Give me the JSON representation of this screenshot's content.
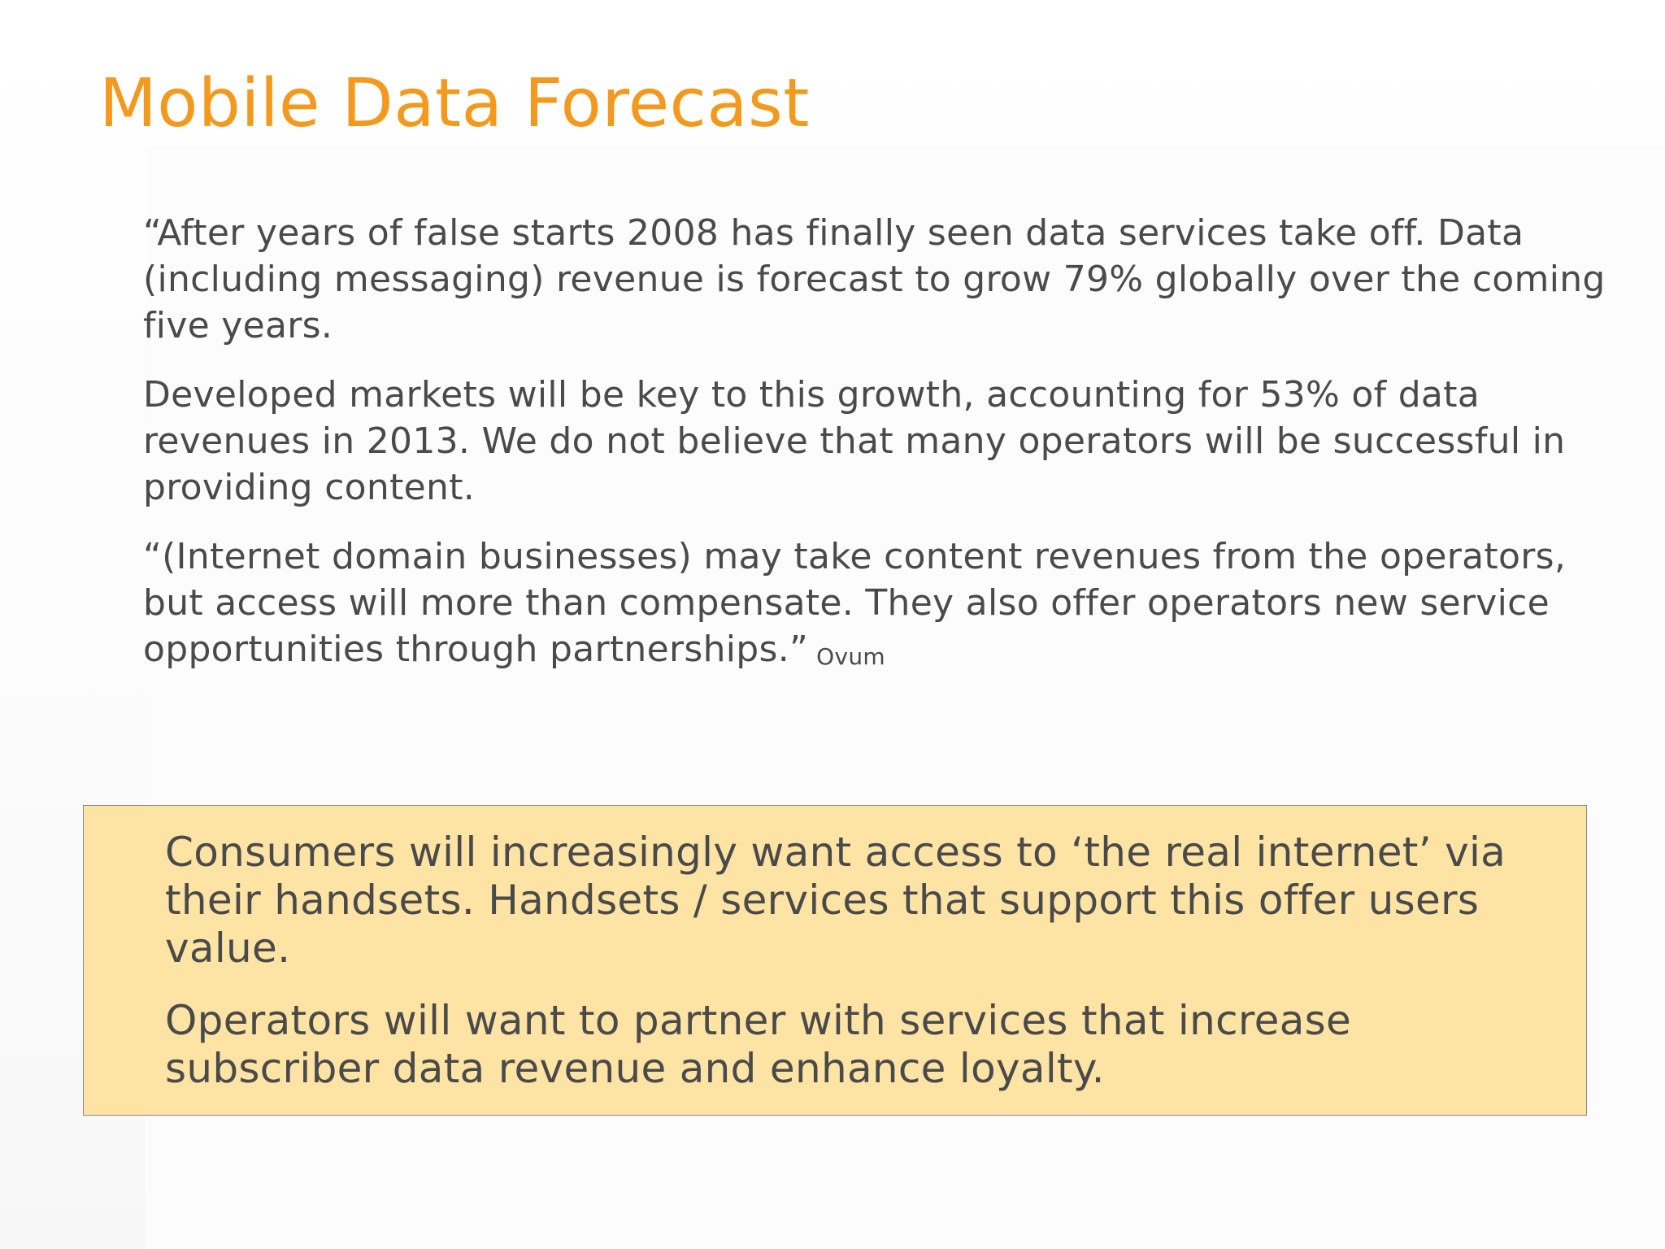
{
  "slide": {
    "title": "Mobile Data Forecast",
    "quote": {
      "paragraphs": [
        "“After years of false starts 2008 has finally seen data services take off. Data (including messaging) revenue is forecast to grow 79% globally over the coming five years.",
        "Developed markets will be key to this growth, accounting for 53% of data revenues in 2013. We do not believe that many operators will be successful in providing content.",
        "“(Internet domain businesses) may take content revenues from the operators, but access will more than compensate. They also offer operators new service opportunities through partnerships.”"
      ],
      "source": "Ovum"
    },
    "callout": {
      "paragraphs": [
        "Consumers will increasingly want access to ‘the real internet’ via their handsets. Handsets / services that support this offer users value.",
        "Operators will want to partner with services that increase subscriber data revenue and enhance loyalty."
      ]
    }
  },
  "colors": {
    "title": "#f39a1e",
    "body_text": "#4a4a4a",
    "callout_fill": "#fde3a4",
    "callout_border": "#8a8a8a"
  }
}
